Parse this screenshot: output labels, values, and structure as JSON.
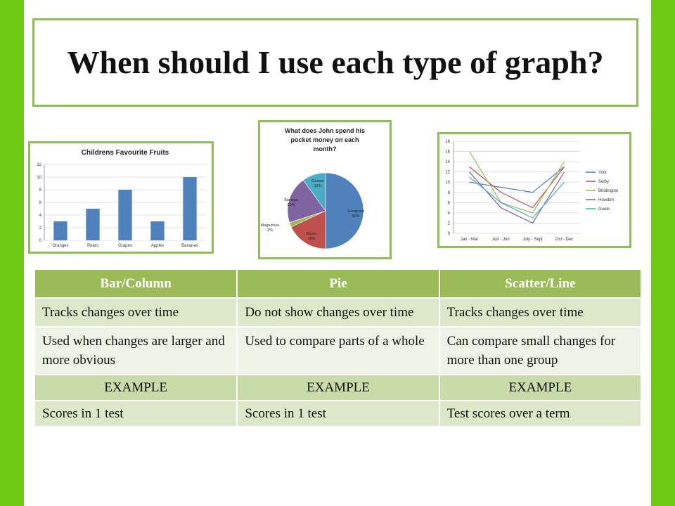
{
  "slide": {
    "title": "When should I use each type of graph?",
    "accent_green": "#6dc913",
    "table_header_green": "#9bbb59"
  },
  "table": {
    "headers": [
      "Bar/Column",
      "Pie",
      "Scatter/Line"
    ],
    "rows": [
      [
        "Tracks changes over time",
        "Do not show changes over time",
        "Tracks changes over time"
      ],
      [
        "Used when changes are larger and more obvious",
        "Used to compare parts of a whole",
        "Can compare small changes for more than one group"
      ],
      [
        "EXAMPLE",
        "EXAMPLE",
        "EXAMPLE"
      ],
      [
        "Scores in 1 test",
        "Scores in 1 test",
        "Test scores over a term"
      ]
    ]
  },
  "chart_data": [
    {
      "type": "bar",
      "title": "Childrens Favourite Fruits",
      "categories": [
        "Oranges",
        "Pears",
        "Grapes",
        "Apples",
        "Bananas"
      ],
      "values": [
        3,
        5,
        8,
        3,
        10
      ],
      "ylim": [
        0,
        12
      ],
      "yticks": [
        "0",
        "2",
        "4",
        "6",
        "8",
        "10",
        "12"
      ],
      "grid": true,
      "color": "#4f81bd"
    },
    {
      "type": "pie",
      "title_lines": [
        "What does John spend his",
        "pocket money on each",
        "month?"
      ],
      "slices": [
        {
          "label": "Going out",
          "pct_label": "50%",
          "value": 50,
          "color": "#4f81bd"
        },
        {
          "label": "Music",
          "pct_label": "18%",
          "value": 18,
          "color": "#c0504d"
        },
        {
          "label": "Magazines",
          "pct_label": "2%",
          "value": 2,
          "color": "#9bbb59"
        },
        {
          "label": "Savings",
          "pct_label": "20%",
          "value": 20,
          "color": "#8064a2"
        },
        {
          "label": "Games",
          "pct_label": "10%",
          "value": 10,
          "color": "#4bacc6"
        }
      ]
    },
    {
      "type": "line",
      "categories": [
        "Jan - Mar",
        "Apr - Jun",
        "July - Sept",
        "Oct - Dec"
      ],
      "ylim": [
        0,
        18
      ],
      "yticks": [
        "0",
        "2",
        "4",
        "6",
        "8",
        "10",
        "12",
        "14",
        "16",
        "18"
      ],
      "grid": true,
      "legend_position": "right",
      "series": [
        {
          "name": "York",
          "values": [
            10,
            9,
            8,
            13
          ],
          "color": "#4f81bd"
        },
        {
          "name": "Selby",
          "values": [
            13,
            8,
            5,
            13
          ],
          "color": "#c0504d"
        },
        {
          "name": "Bridlington",
          "values": [
            16,
            6,
            4,
            14
          ],
          "color": "#9bbb59"
        },
        {
          "name": "Howden",
          "values": [
            12,
            5,
            2,
            12
          ],
          "color": "#8064a2"
        },
        {
          "name": "Goole",
          "values": [
            11,
            6,
            3,
            10
          ],
          "color": "#4bacc6"
        }
      ]
    }
  ]
}
